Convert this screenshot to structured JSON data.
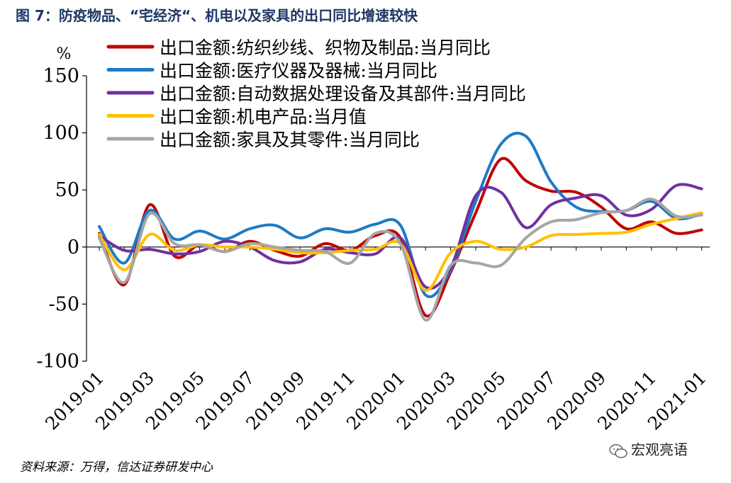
{
  "figure": {
    "title": "图 7：防疫物品、“宅经济“、机电以及家具的出口同比增速较快",
    "source": "资料来源：万得，信达证券研发中心",
    "watermark": "宏观亮语"
  },
  "chart_data": {
    "type": "line",
    "ylabel": "%",
    "ylim": [
      -100,
      150
    ],
    "yticks": [
      -100,
      -50,
      0,
      50,
      100,
      150
    ],
    "xlabels": [
      "2019-01",
      "2019-03",
      "2019-05",
      "2019-07",
      "2019-09",
      "2019-11",
      "2020-01",
      "2020-03",
      "2020-05",
      "2020-07",
      "2020-09",
      "2020-11",
      "2021-01"
    ],
    "x": [
      "2019-01",
      "2019-02",
      "2019-03",
      "2019-04",
      "2019-05",
      "2019-06",
      "2019-07",
      "2019-08",
      "2019-09",
      "2019-10",
      "2019-11",
      "2019-12",
      "2020-01",
      "2020-02",
      "2020-03",
      "2020-04",
      "2020-05",
      "2020-06",
      "2020-07",
      "2020-08",
      "2020-09",
      "2020-10",
      "2020-11",
      "2020-12",
      "2021-01"
    ],
    "grid": false,
    "legend": "top-left",
    "series": [
      {
        "name": "出口金额:纺织纱线、织物及制品:当月同比",
        "color": "#c00000",
        "values": [
          12,
          -33,
          37,
          -8,
          2,
          -4,
          5,
          -3,
          -8,
          3,
          -3,
          10,
          8,
          -60,
          -22,
          30,
          77,
          58,
          49,
          48,
          35,
          16,
          22,
          12,
          15
        ]
      },
      {
        "name": "出口金额:医疗仪器及器械:当月同比",
        "color": "#1e7bc4",
        "values": [
          18,
          -14,
          32,
          7,
          14,
          7,
          16,
          19,
          8,
          16,
          13,
          20,
          19,
          -42,
          -20,
          40,
          90,
          97,
          57,
          35,
          31,
          32,
          40,
          25,
          29
        ]
      },
      {
        "name": "出口金额:自动数据处理设备及其部件:当月同比",
        "color": "#7030a0",
        "values": [
          10,
          -3,
          -2,
          -6,
          -4,
          5,
          0,
          -12,
          -13,
          -2,
          -5,
          -6,
          8,
          -35,
          -18,
          45,
          48,
          17,
          37,
          43,
          45,
          28,
          33,
          54,
          51
        ]
      },
      {
        "name": "出口金额:机电产品:当月值",
        "color": "#ffc000",
        "values": [
          11,
          -20,
          11,
          -3,
          2,
          0,
          0,
          -2,
          -5,
          -5,
          -3,
          -2,
          3,
          -38,
          -5,
          5,
          -2,
          0,
          10,
          11,
          12,
          13,
          20,
          25,
          30
        ]
      },
      {
        "name": "出口金额:家具及其零件:当月同比",
        "color": "#a6a6a6",
        "values": [
          8,
          -31,
          29,
          3,
          2,
          -4,
          3,
          0,
          -3,
          -4,
          -14,
          12,
          3,
          -64,
          -16,
          -14,
          -16,
          8,
          22,
          24,
          30,
          32,
          42,
          27,
          28
        ]
      }
    ]
  }
}
